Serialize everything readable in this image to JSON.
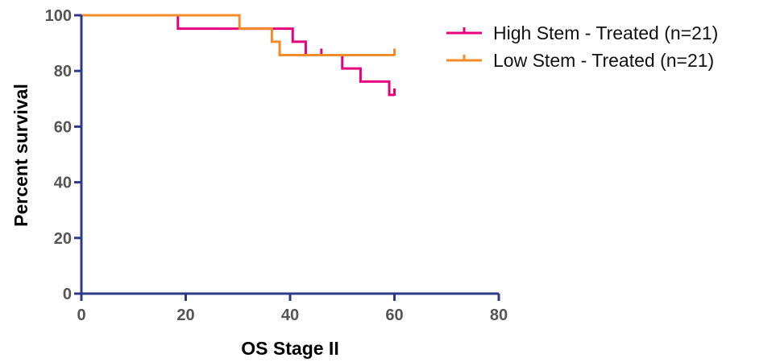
{
  "chart_data": {
    "type": "line",
    "subtype": "kaplan-meier",
    "title": "",
    "xlabel": "OS Stage II",
    "ylabel": "Percent survival",
    "xlim": [
      0,
      80
    ],
    "ylim": [
      0,
      100
    ],
    "xticks": [
      0,
      20,
      40,
      60,
      80
    ],
    "yticks": [
      0,
      20,
      40,
      60,
      80,
      100
    ],
    "grid": false,
    "legend_position": "top-right",
    "axis_color": "#2e3a87",
    "series": [
      {
        "name": "High Stem - Treated (n=21)",
        "color": "#e6007e",
        "steps": [
          [
            0,
            100
          ],
          [
            18.5,
            95.2
          ],
          [
            40.5,
            90.5
          ],
          [
            43,
            85.7
          ],
          [
            50,
            80.9
          ],
          [
            53.5,
            76.2
          ],
          [
            59,
            71.4
          ],
          [
            60,
            71.4
          ]
        ],
        "censored": [
          [
            46,
            85.7
          ],
          [
            60,
            71.4
          ]
        ]
      },
      {
        "name": "Low Stem - Treated (n=21)",
        "color": "#f28c28",
        "steps": [
          [
            0,
            100
          ],
          [
            30.3,
            95.2
          ],
          [
            36.5,
            90.5
          ],
          [
            38,
            85.7
          ],
          [
            60,
            85.7
          ]
        ],
        "censored": [
          [
            60,
            85.7
          ]
        ]
      }
    ]
  }
}
